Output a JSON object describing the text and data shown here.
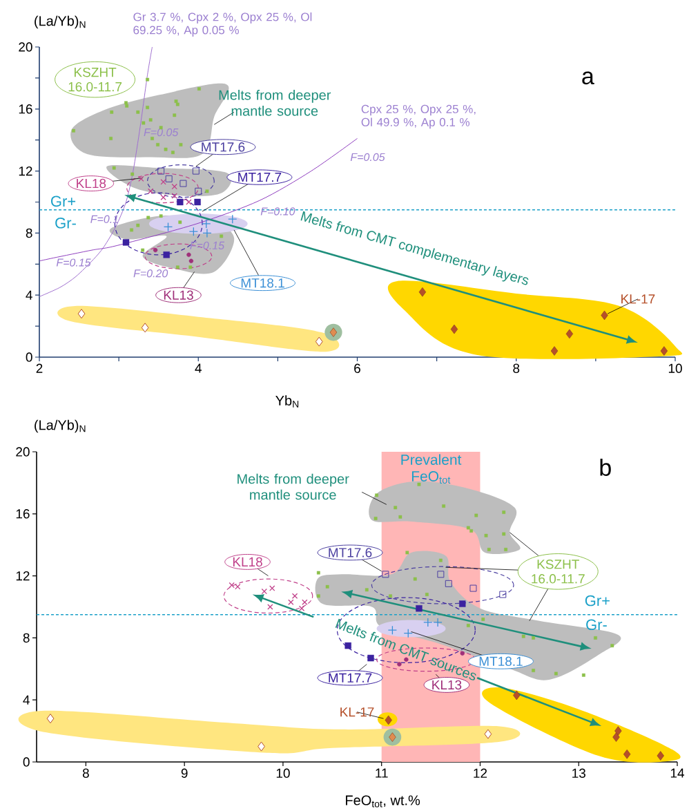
{
  "chart_data": [
    {
      "type": "scatter",
      "title": "a",
      "legend": "top left",
      "xlabel": "Yb$_{N}$",
      "ylabel": "(La/Yb)$_{N}$",
      "xlim": [
        2,
        10
      ],
      "ylim": [
        0,
        20
      ],
      "xticks": [
        2,
        {
          "value": 3,
          "label": null
        },
        4,
        {
          "value": 5,
          "label": null
        },
        6,
        {
          "value": 7,
          "label": null
        },
        8,
        {
          "value": 9,
          "label": null
        },
        10
      ],
      "yticks": [
        0,
        {
          "value": 2,
          "label": null
        },
        4,
        {
          "value": 6,
          "label": null
        },
        8,
        {
          "value": 10,
          "label": null
        },
        12,
        {
          "value": 14,
          "label": null
        },
        16,
        {
          "value": 18,
          "label": null
        },
        20
      ],
      "ref_lines": [
        {
          "axis": "y",
          "value": 9.5,
          "label": "Gr+",
          "color": "#1aa0c8",
          "line_style": "dashed"
        }
      ],
      "annotations": [
        "Gr-",
        "Melts from deeper mantle source",
        "Melts from CMT complementary layers",
        "F=0.05",
        "F=0.05",
        "F=0.1",
        "F=0.10",
        "F=0.15",
        "F=0.15",
        "F=0.20"
      ],
      "series": [
        {
          "name": "KSZHT 16.0-11.7",
          "color": "#8cc04a",
          "x": [
            3.36,
            4.01,
            3.72,
            3.09,
            3.36,
            3.1,
            2.91,
            3.24,
            3.74,
            3.7,
            3.4,
            3.31,
            2.43,
            3.53,
            2.9,
            3.42,
            3.78,
            3.49,
            3.59,
            3.68,
            2.94,
            3.17,
            4.11,
            3.53,
            3.37,
            3.77,
            3.24,
            3.16,
            4.29,
            3.3,
            3.74,
            3.9
          ],
          "values": [
            17.9,
            17.3,
            16.5,
            16.4,
            16.1,
            16.2,
            15.8,
            15.8,
            16.3,
            15.6,
            15.3,
            15.1,
            14.6,
            14.8,
            14.1,
            14.1,
            13.7,
            13.7,
            13.4,
            13.2,
            12.2,
            11.8,
            10.7,
            9.1,
            9.0,
            8.7,
            8.5,
            8.2,
            7.8,
            6.9,
            5.8,
            5.8
          ]
        },
        {
          "name": "MT17.6",
          "marker": "square_open",
          "color": "#4b3fa0",
          "x": [
            3.53,
            3.97,
            3.63,
            3.81,
            4.0
          ],
          "values": [
            12.0,
            12.0,
            11.5,
            11.2,
            10.7
          ]
        },
        {
          "name": "KL18",
          "marker": "cross",
          "color": "#c0408a",
          "x": [
            3.28,
            3.4,
            3.56,
            3.56,
            3.7,
            3.7,
            3.88
          ],
          "values": [
            11.5,
            10.7,
            11.3,
            10.3,
            11.0,
            10.4,
            10.0
          ]
        },
        {
          "name": "MT17.7",
          "marker": "square",
          "color": "#3b22a0",
          "x": [
            3.09,
            3.6,
            3.77,
            3.99
          ],
          "values": [
            7.4,
            6.6,
            10.0,
            10.0
          ]
        },
        {
          "name": "MT18.1",
          "marker": "plus",
          "color": "#3a8fd6",
          "x": [
            3.62,
            3.94,
            4.11,
            4.1,
            4.43
          ],
          "values": [
            8.4,
            8.1,
            8.0,
            8.6,
            8.9
          ]
        },
        {
          "name": "KL13",
          "marker": "circle",
          "color": "#a0307a",
          "x": [
            3.46,
            3.88,
            3.91
          ],
          "values": [
            6.9,
            6.6,
            6.2
          ]
        },
        {
          "name": "KL-17",
          "marker": "diamond",
          "color": "#b5502a",
          "x": [
            6.82,
            7.22,
            8.48,
            8.67,
            9.11,
            9.86
          ],
          "values": [
            4.2,
            1.8,
            0.4,
            1.5,
            2.7,
            0.4
          ]
        },
        {
          "marker": "diamond_open",
          "color": "#b5502a",
          "x": [
            2.53,
            3.33,
            5.52
          ],
          "values": [
            2.8,
            1.9,
            1.0
          ]
        },
        {
          "marker": "diamond",
          "color": "#e08c50",
          "x": [
            5.7
          ],
          "values": [
            1.6
          ]
        },
        {
          "name": "Gr 3.7 %, Cpx 2 %, Opx 25 %, Ol 69.25 %, Ap 0.05 %",
          "type": "line",
          "marker": "none",
          "color": "#a070d0",
          "x": [
            2.0,
            2.26,
            2.46,
            2.68,
            2.81,
            2.96,
            3.09,
            3.18,
            3.27,
            3.36,
            3.42
          ],
          "values": [
            3.9,
            4.5,
            5.2,
            6.3,
            7.1,
            8.4,
            10.0,
            12.0,
            14.9,
            18.2,
            20.0
          ]
        },
        {
          "name": "Cpx 25 %, Opx 25 %, Ol 49.9 %, Ap 0.1 %",
          "type": "line",
          "marker": "none",
          "color": "#9040c0",
          "x": [
            2.0,
            2.18,
            2.66,
            2.98,
            3.98,
            4.77,
            5.42,
            6.0
          ],
          "values": [
            6.2,
            6.4,
            6.9,
            7.2,
            8.6,
            10.1,
            12.0,
            14.1
          ]
        }
      ]
    },
    {
      "type": "scatter",
      "title": "b",
      "legend": "bottom right",
      "xlabel": "FeO$_{tot}$, wt.%",
      "ylabel": "(La/Yb)$_{N}$",
      "xlim": [
        7.5,
        14
      ],
      "ylim": [
        0,
        20
      ],
      "xticks": [
        8,
        9,
        10,
        11,
        12,
        13,
        14
      ],
      "yticks": [
        0,
        4,
        8,
        12,
        16,
        20
      ],
      "ref_lines": [
        {
          "axis": "y",
          "value": 9.5,
          "label": "Gr+",
          "color": "#1aa0c8",
          "line_style": "dashed"
        }
      ],
      "bands": [
        {
          "axis": "x",
          "from": 11,
          "to": 12,
          "label": "Prevalent FeO$_{tot}$",
          "color": "#ffb6b6"
        }
      ],
      "annotations": [
        "Gr-",
        "Melts from deeper mantle source",
        "Melts from CMT sources"
      ],
      "series": [
        {
          "name": "KSZHT 16.0-11.7",
          "color": "#8cc04a",
          "x": [
            11.38,
            10.95,
            10.94,
            11.14,
            11.19,
            11.63,
            11.96,
            12.24,
            11.88,
            11.91,
            12.06,
            12.24,
            12.09,
            12.26,
            11.26,
            11.6,
            11.34,
            10.85,
            11.09,
            11.46,
            12.03,
            11.88,
            12.44,
            12.54,
            13.17,
            13.34,
            12.54,
            12.77,
            13.05,
            10.36,
            10.45,
            10.36
          ],
          "values": [
            17.9,
            17.2,
            15.7,
            16.4,
            15.8,
            16.5,
            15.9,
            16.1,
            15.1,
            14.9,
            14.6,
            14.7,
            13.7,
            13.7,
            13.5,
            13.0,
            11.8,
            11.1,
            10.7,
            10.8,
            9.2,
            8.8,
            8.1,
            8.0,
            8.0,
            7.5,
            5.9,
            5.7,
            5.6,
            12.2,
            11.3,
            10.7
          ]
        },
        {
          "name": "MT17.6",
          "marker": "square_open",
          "color": "#4b3fa0",
          "x": [
            11.04,
            11.6,
            11.68,
            11.93,
            12.23
          ],
          "values": [
            12.1,
            12.1,
            11.5,
            11.2,
            10.8
          ]
        },
        {
          "name": "KL18",
          "marker": "cross",
          "color": "#c0408a",
          "x": [
            9.48,
            9.54,
            9.81,
            9.89,
            9.87,
            10.08,
            10.12,
            10.19,
            10.22
          ],
          "values": [
            11.4,
            11.3,
            11.0,
            11.2,
            10.0,
            10.3,
            10.7,
            9.9,
            10.3
          ]
        },
        {
          "name": "MT17.7",
          "marker": "square",
          "color": "#3b22a0",
          "x": [
            10.66,
            10.89,
            11.38,
            11.82
          ],
          "values": [
            7.5,
            6.7,
            9.9,
            10.2
          ]
        },
        {
          "name": "MT18.1",
          "marker": "plus",
          "color": "#3a8fd6",
          "x": [
            11.11,
            11.27,
            11.47,
            11.57
          ],
          "values": [
            8.5,
            8.3,
            9.0,
            9.0
          ]
        },
        {
          "name": "KL13",
          "marker": "circle",
          "color": "#a0307a",
          "x": [
            11.18,
            11.25,
            11.82
          ],
          "values": [
            6.3,
            6.6,
            7.0
          ]
        },
        {
          "name": "KL-17",
          "marker": "diamond",
          "color": "#b5502a",
          "x": [
            11.07,
            12.37,
            13.4,
            13.38,
            13.49,
            13.83
          ],
          "values": [
            2.7,
            4.3,
            2.0,
            1.6,
            0.5,
            0.4
          ]
        },
        {
          "marker": "diamond_open",
          "color": "#b5502a",
          "x": [
            7.64,
            9.78,
            12.08
          ],
          "values": [
            2.8,
            1.0,
            1.8
          ]
        },
        {
          "marker": "diamond",
          "color": "#e08c50",
          "x": [
            11.11
          ],
          "values": [
            1.6
          ]
        }
      ]
    }
  ]
}
